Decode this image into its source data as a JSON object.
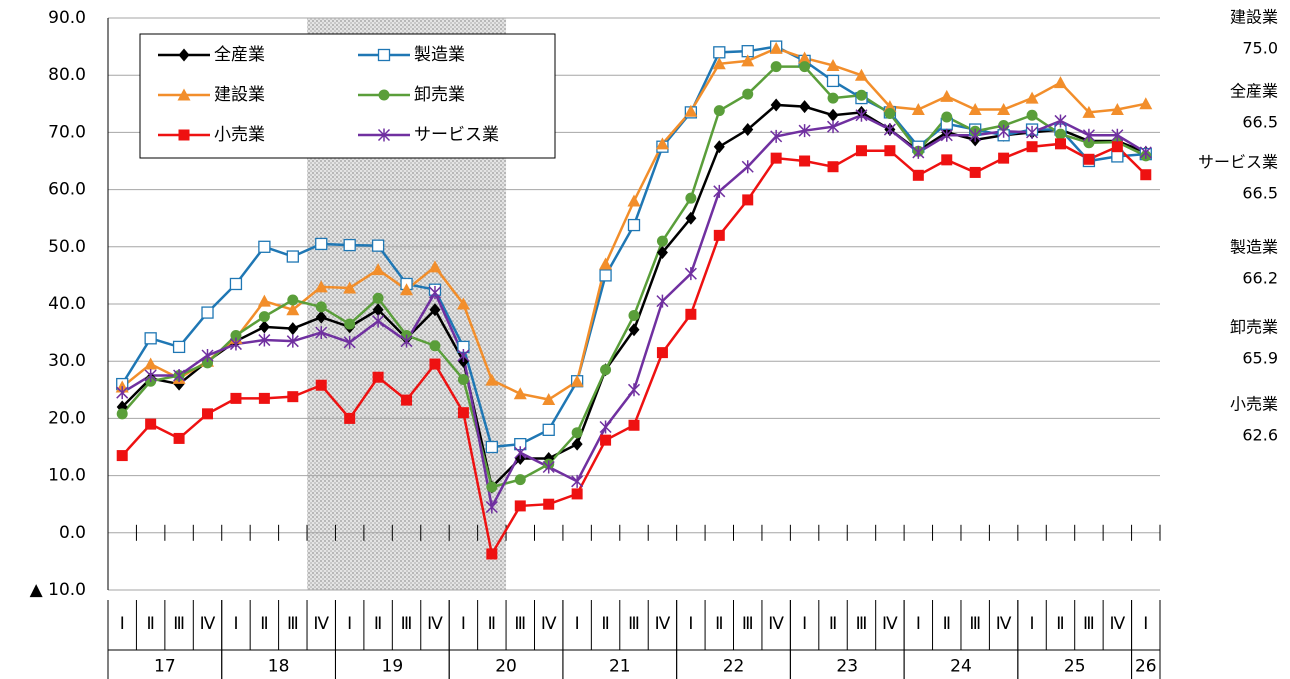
{
  "chart_data": {
    "type": "line",
    "categories": [
      "Ⅰ",
      "Ⅱ",
      "Ⅲ",
      "Ⅳ",
      "Ⅰ",
      "Ⅱ",
      "Ⅲ",
      "Ⅳ",
      "Ⅰ",
      "Ⅱ",
      "Ⅲ",
      "Ⅳ",
      "Ⅰ",
      "Ⅱ",
      "Ⅲ",
      "Ⅳ",
      "Ⅰ",
      "Ⅱ",
      "Ⅲ",
      "Ⅳ",
      "Ⅰ",
      "Ⅱ",
      "Ⅲ",
      "Ⅳ",
      "Ⅰ",
      "Ⅱ",
      "Ⅲ",
      "Ⅳ",
      "Ⅰ",
      "Ⅱ",
      "Ⅲ",
      "Ⅳ",
      "Ⅰ",
      "Ⅱ",
      "Ⅲ",
      "Ⅳ",
      "Ⅰ"
    ],
    "years": [
      "17",
      "18",
      "19",
      "20",
      "21",
      "22",
      "23",
      "24",
      "25",
      "26"
    ],
    "shaded": [
      7,
      13
    ],
    "ylim": [
      -10,
      90
    ],
    "yticks": [
      {
        "value": -10,
        "label": "▲ 10.0"
      },
      {
        "value": 0,
        "label": "0.0"
      },
      {
        "value": 10,
        "label": "10.0"
      },
      {
        "value": 20,
        "label": "20.0"
      },
      {
        "value": 30,
        "label": "30.0"
      },
      {
        "value": 40,
        "label": "40.0"
      },
      {
        "value": 50,
        "label": "50.0"
      },
      {
        "value": 60,
        "label": "60.0"
      },
      {
        "value": 70,
        "label": "70.0"
      },
      {
        "value": 80,
        "label": "80.0"
      },
      {
        "value": 90,
        "label": "90.0"
      }
    ],
    "grid": true,
    "legend": "upper left",
    "series": [
      {
        "name": "全産業",
        "color": "#000000",
        "marker": "diamond",
        "values": [
          22,
          27,
          26,
          30,
          33.5,
          36,
          35.7,
          37.7,
          36,
          39,
          34,
          39,
          30,
          8,
          13,
          13,
          15.5,
          28.5,
          35.5,
          49,
          55,
          67.5,
          70.5,
          74.8,
          74.5,
          73,
          73.5,
          70.5,
          66.8,
          70,
          68.7,
          69.5,
          70,
          70.5,
          68.5,
          68.5,
          66.5
        ]
      },
      {
        "name": "製造業",
        "color": "#1f77b4",
        "marker": "square-open",
        "values": [
          26,
          34,
          32.5,
          38.5,
          43.5,
          50,
          48.3,
          50.5,
          50.3,
          50.2,
          43.5,
          42.5,
          32.5,
          15,
          15.5,
          18,
          26.5,
          45,
          53.8,
          67.5,
          73.5,
          84,
          84.2,
          85,
          82.5,
          79,
          76,
          73.5,
          67.5,
          71.5,
          70.5,
          69.5,
          70.5,
          70.5,
          65,
          65.8,
          66.2
        ]
      },
      {
        "name": "建設業",
        "color": "#f28e2b",
        "marker": "triangle",
        "values": [
          25.5,
          29.5,
          27,
          30,
          34,
          40.5,
          39,
          43,
          42.8,
          46,
          42.5,
          46.5,
          40,
          26.7,
          24.3,
          23.3,
          26.5,
          47,
          58,
          68,
          73.7,
          82,
          82.5,
          84.7,
          83,
          81.7,
          80,
          74.5,
          74,
          76.3,
          74,
          74,
          76,
          78.7,
          73.5,
          74,
          75
        ]
      },
      {
        "name": "卸売業",
        "color": "#5a9e3a",
        "marker": "circle",
        "values": [
          20.8,
          26.5,
          27.5,
          29.7,
          34.5,
          37.8,
          40.7,
          39.5,
          36.5,
          41,
          34.5,
          32.7,
          26.8,
          8,
          9.3,
          12,
          17.5,
          28.5,
          38,
          51,
          58.5,
          73.8,
          76.7,
          81.5,
          81.5,
          76,
          76.5,
          73.3,
          66.7,
          72.7,
          70.2,
          71.2,
          73,
          69.7,
          68.2,
          68.3,
          65.9
        ]
      },
      {
        "name": "小売業",
        "color": "#ee1111",
        "marker": "square",
        "values": [
          13.5,
          19,
          16.5,
          20.8,
          23.5,
          23.5,
          23.8,
          25.8,
          20,
          27.2,
          23.2,
          29.5,
          21,
          -3.7,
          4.7,
          5,
          6.8,
          16.2,
          18.8,
          31.5,
          38.2,
          52,
          58.2,
          65.5,
          65,
          64,
          66.8,
          66.8,
          62.5,
          65.2,
          63,
          65.5,
          67.5,
          68,
          65.3,
          67.5,
          62.6
        ]
      },
      {
        "name": "サービス業",
        "color": "#7030a0",
        "marker": "star",
        "values": [
          24.5,
          27.5,
          27.5,
          31,
          33,
          33.7,
          33.5,
          35,
          33.3,
          37,
          33.5,
          42,
          31,
          4.5,
          14,
          11.5,
          9,
          18.5,
          25,
          40.5,
          45.3,
          59.7,
          64,
          69.3,
          70.3,
          71,
          73,
          70.5,
          66.5,
          69.5,
          69.5,
          70.2,
          70,
          72,
          69.5,
          69.5,
          66.5
        ]
      }
    ],
    "annotations": [
      {
        "name": "建設業",
        "text": "75.0"
      },
      {
        "name": "全産業",
        "text": "66.5"
      },
      {
        "name": "サービス業",
        "text": "66.5"
      },
      {
        "name": "製造業",
        "text": "66.2"
      },
      {
        "name": "卸売業",
        "text": "65.9"
      },
      {
        "name": "小売業",
        "text": "62.6"
      }
    ]
  }
}
